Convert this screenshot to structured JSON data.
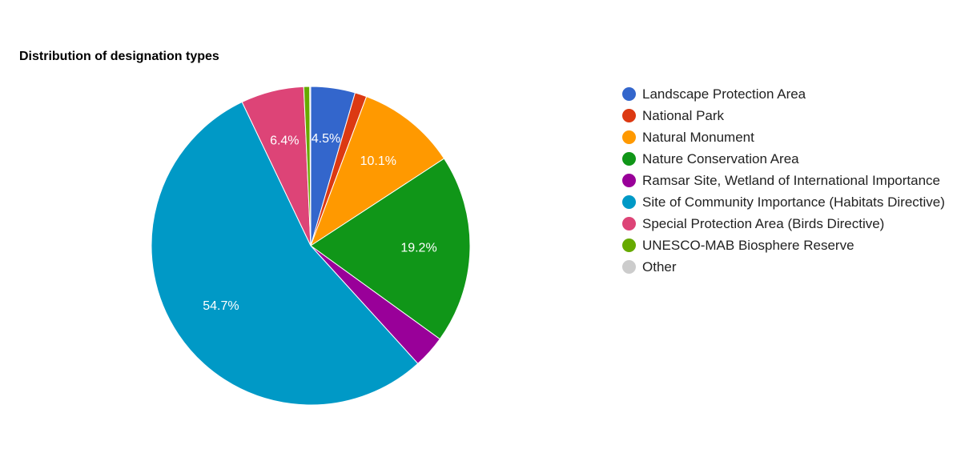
{
  "chart_data": {
    "type": "pie",
    "title": "Distribution of designation types",
    "categories": [
      "Landscape Protection Area",
      "National Park",
      "Natural Monument",
      "Nature Conservation Area",
      "Ramsar Site, Wetland of International Importance",
      "Site of Community Importance (Habitats Directive)",
      "Special Protection Area (Birds Directive)",
      "UNESCO-MAB Biosphere Reserve",
      "Other"
    ],
    "values": [
      4.5,
      1.2,
      10.1,
      19.2,
      3.3,
      54.7,
      6.4,
      0.6,
      0.1
    ],
    "colors": [
      "#3366cc",
      "#dc3912",
      "#ff9900",
      "#109618",
      "#990099",
      "#0099c6",
      "#dd4477",
      "#66aa00",
      "#cccccc"
    ],
    "data_labels": [
      "4.5%",
      "",
      "10.1%",
      "19.2%",
      "",
      "54.7%",
      "6.4%",
      "",
      ""
    ],
    "start_angle": "12 o'clock, clockwise",
    "legend_position": "right"
  }
}
